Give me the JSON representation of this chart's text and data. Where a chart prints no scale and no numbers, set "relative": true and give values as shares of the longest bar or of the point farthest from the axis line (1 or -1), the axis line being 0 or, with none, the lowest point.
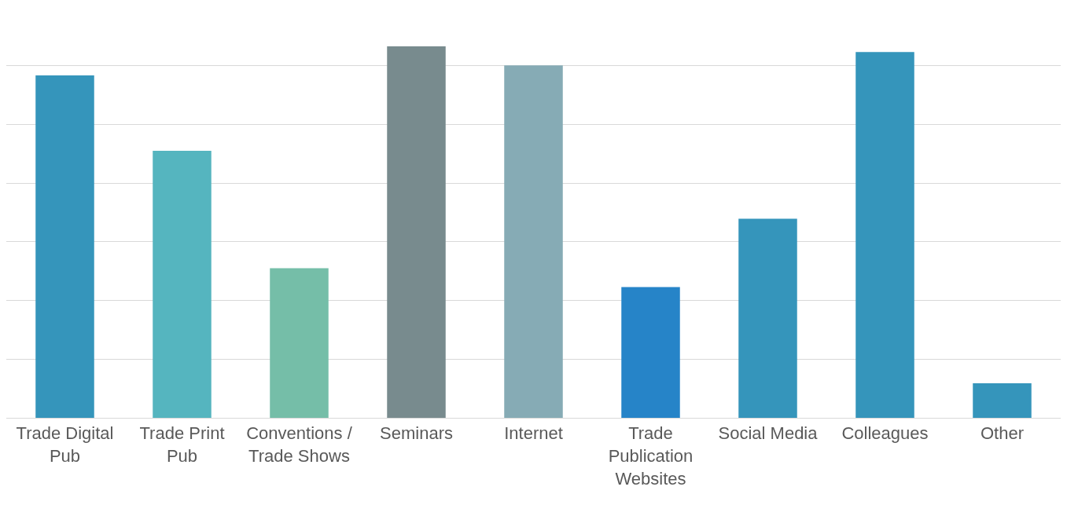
{
  "chart_data": {
    "type": "bar",
    "relative": true,
    "grid": "y",
    "categories": [
      "Trade Digital Pub",
      "Trade Print Pub",
      "Conventions / Trade Shows",
      "Seminars",
      "Internet",
      "Trade Publication Websites",
      "Social Media",
      "Colleagues",
      "Other"
    ],
    "values": [
      0.922,
      0.719,
      0.403,
      1,
      0.949,
      0.352,
      0.536,
      0.985,
      0.093
    ],
    "colors": [
      "#3595bb",
      "#55b5bf",
      "#75bea8",
      "#788b8e",
      "#86abb5",
      "#2684c8",
      "#3595bb",
      "#3595bb",
      "#3595bb"
    ]
  }
}
